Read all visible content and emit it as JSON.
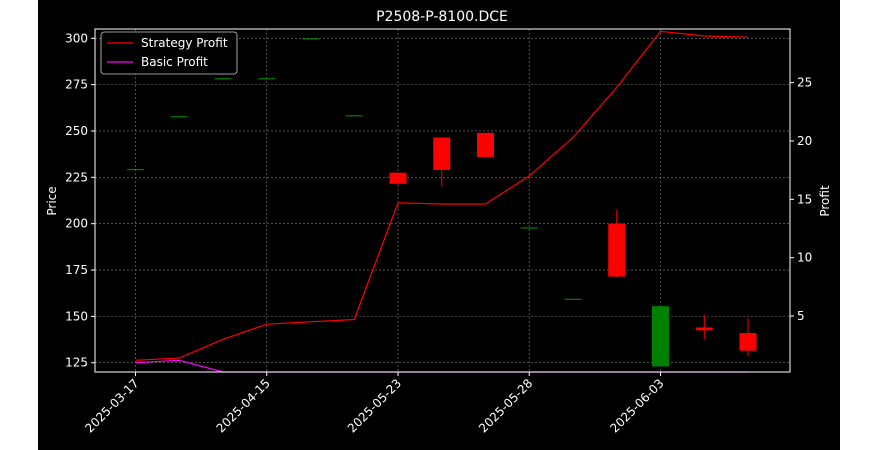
{
  "chart_data": {
    "type": "candlestick+line",
    "title": "P2508-P-8100.DCE",
    "ylabel_left": "Price",
    "ylabel_right": "Profit",
    "x_tick_labels": [
      "2025-03-17",
      "2025-04-15",
      "2025-05-23",
      "2025-05-28",
      "2025-06-03"
    ],
    "x_tick_indices": [
      0,
      3,
      6,
      9,
      12
    ],
    "y_left_ticks": [
      125,
      150,
      175,
      200,
      225,
      250,
      275,
      300
    ],
    "y_left_lim": [
      120,
      305
    ],
    "y_right_ticks": [
      5,
      10,
      15,
      20,
      25
    ],
    "y_right_lim": [
      0.2,
      29.6
    ],
    "grid": true,
    "legend_placement": "top-left",
    "legend": [
      "Strategy Profit",
      "Basic Profit"
    ],
    "colors": {
      "background": "#000000",
      "text": "#ffffff",
      "up": "#008000",
      "down": "#ff0000",
      "strategy": "#ff0000",
      "basic": "#ff00ff",
      "grid": "#808080"
    },
    "candles": [
      {
        "i": 0,
        "open": 229.5,
        "high": 229.5,
        "low": 229.5,
        "close": 229.5
      },
      {
        "i": 1,
        "open": 258.0,
        "high": 258.0,
        "low": 258.0,
        "close": 258.0
      },
      {
        "i": 2,
        "open": 278.5,
        "high": 278.5,
        "low": 278.5,
        "close": 278.5
      },
      {
        "i": 3,
        "open": 278.5,
        "high": 278.5,
        "low": 278.5,
        "close": 278.5
      },
      {
        "i": 4,
        "open": 300.0,
        "high": 300.0,
        "low": 300.0,
        "close": 300.0
      },
      {
        "i": 5,
        "open": 258.5,
        "high": 258.5,
        "low": 258.5,
        "close": 258.5
      },
      {
        "i": 6,
        "open": 227.5,
        "high": 227.5,
        "low": 221.0,
        "close": 221.5
      },
      {
        "i": 7,
        "open": 246.5,
        "high": 246.5,
        "low": 220.0,
        "close": 229.0
      },
      {
        "i": 8,
        "open": 249.0,
        "high": 249.0,
        "low": 235.5,
        "close": 236.0
      },
      {
        "i": 9,
        "open": 198.0,
        "high": 198.0,
        "low": 198.0,
        "close": 198.0
      },
      {
        "i": 10,
        "open": 159.5,
        "high": 159.5,
        "low": 159.5,
        "close": 159.5
      },
      {
        "i": 11,
        "open": 200.0,
        "high": 207.5,
        "low": 171.0,
        "close": 171.5
      },
      {
        "i": 12,
        "open": 123.0,
        "high": 155.5,
        "low": 123.0,
        "close": 155.5
      },
      {
        "i": 13,
        "open": 144.0,
        "high": 151.0,
        "low": 137.5,
        "close": 142.5
      },
      {
        "i": 14,
        "open": 141.0,
        "high": 149.0,
        "low": 128.5,
        "close": 131.5
      }
    ],
    "series": [
      {
        "name": "Strategy Profit",
        "values": [
          1.2,
          1.4,
          3.0,
          4.3,
          4.5,
          4.7,
          14.7,
          14.6,
          14.6,
          17.0,
          20.3,
          24.6,
          29.4,
          29.0,
          28.9
        ]
      },
      {
        "name": "Basic Profit",
        "values": [
          1.0,
          1.2,
          0.2,
          0.2,
          0.2,
          0.2,
          0.2,
          0.2,
          0.2,
          0.2,
          0.2,
          0.2,
          0.2,
          0.2,
          0.2
        ]
      }
    ]
  }
}
